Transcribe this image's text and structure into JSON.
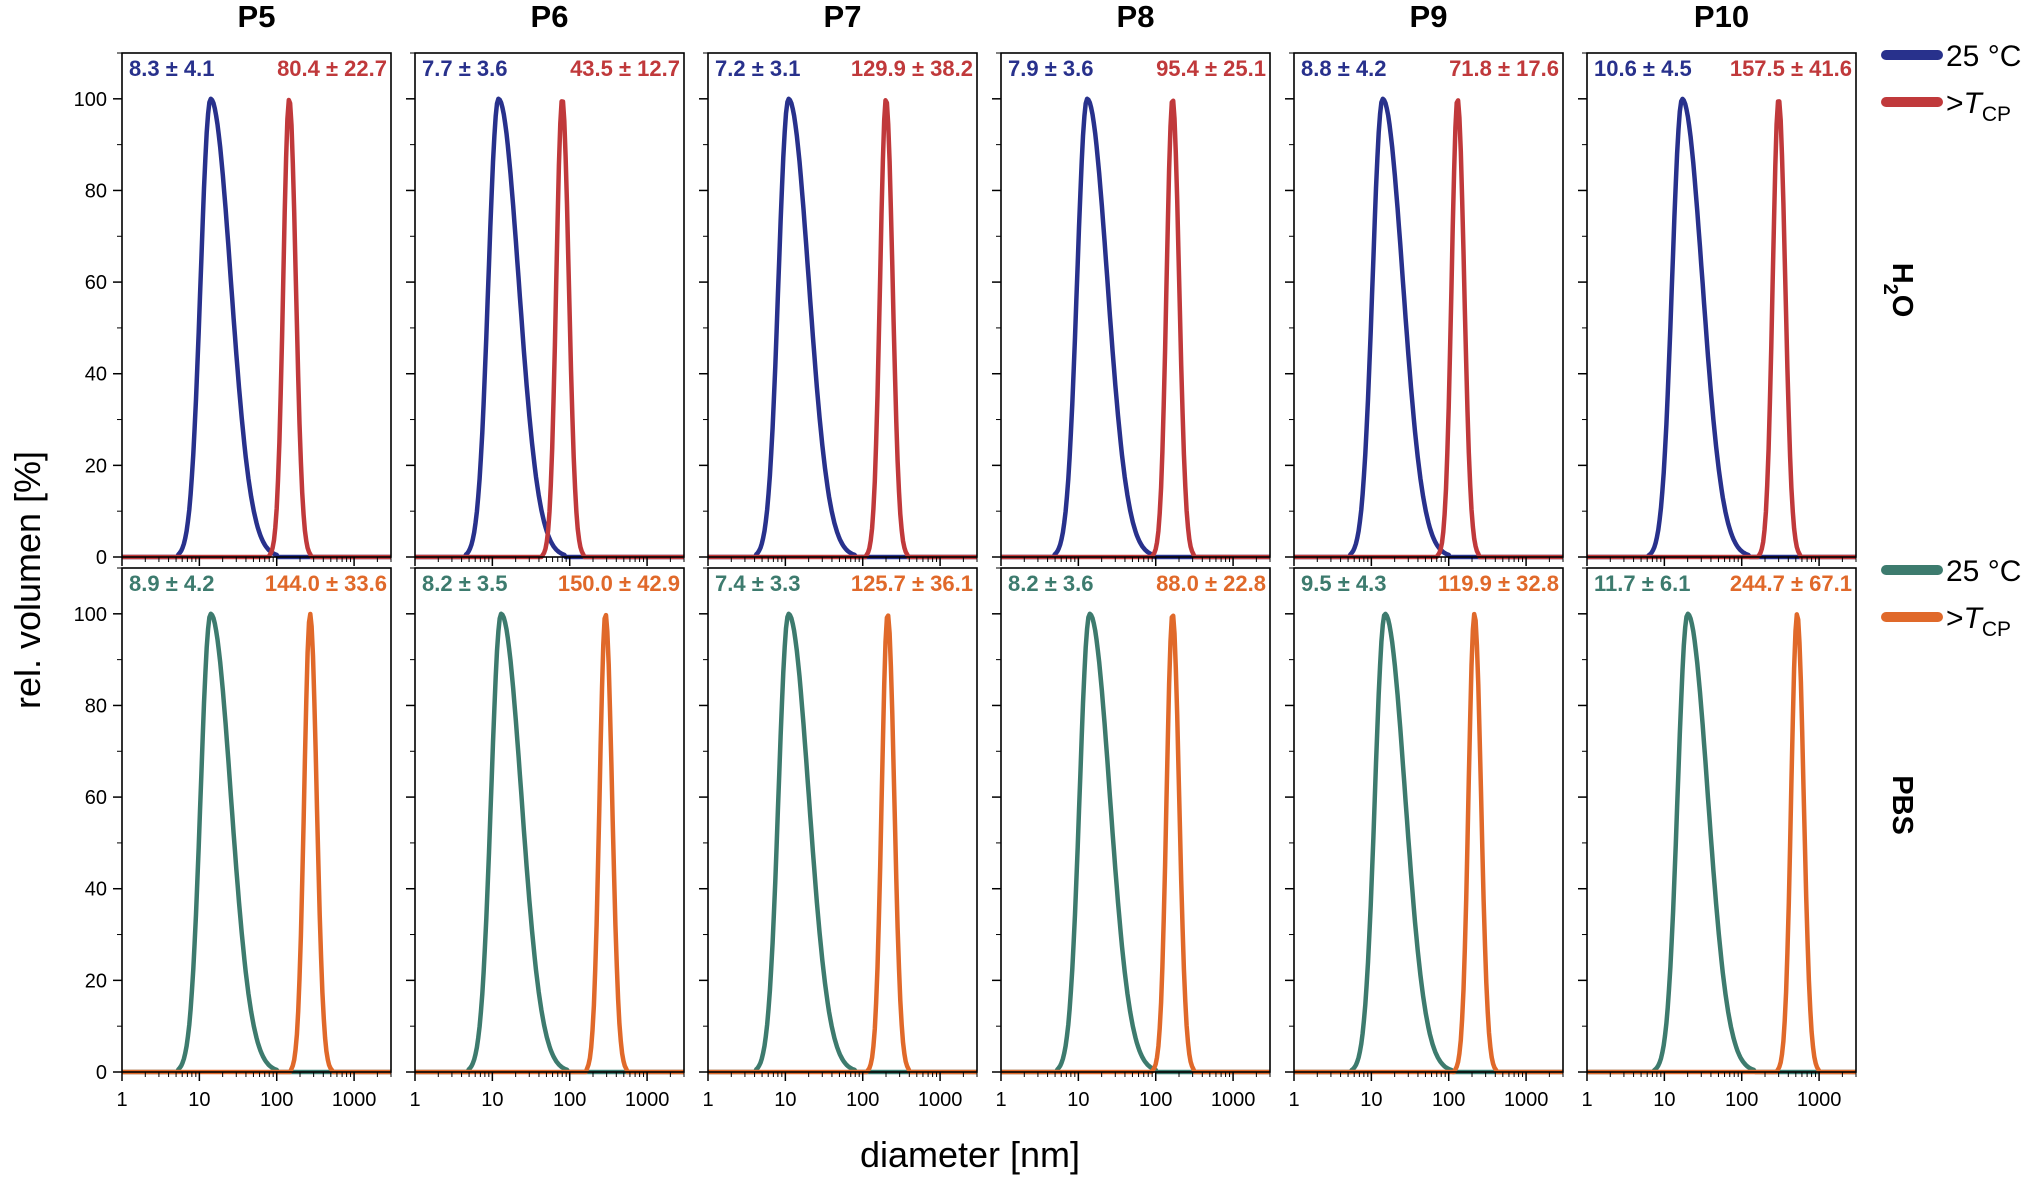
{
  "chart_data": {
    "type": "line",
    "xscale": "log",
    "xlim": [
      1,
      3000
    ],
    "ylim": [
      0,
      110
    ],
    "xticks": [
      "1",
      "10",
      "100",
      "1000"
    ],
    "yticks": [
      "0",
      "20",
      "40",
      "60",
      "80",
      "100"
    ],
    "xlabel": "diameter [nm]",
    "ylabel": "rel. volumen [%]",
    "columns": [
      "P5",
      "P6",
      "P7",
      "P8",
      "P9",
      "P10"
    ],
    "rows": [
      {
        "label_main": "H",
        "label_sub": "2",
        "label_tail": "O",
        "colors": [
          "#28318c",
          "#c0393b"
        ],
        "legend": [
          {
            "text": "25 °C",
            "color": "#28318c"
          },
          {
            "text_pre": ">",
            "text_italic": "T",
            "text_sub": "CP",
            "color": "#c0393b"
          }
        ],
        "panels": [
          {
            "ann1": "8.3 ± 4.1",
            "ann2": "80.4 ± 22.7",
            "peak1": 14,
            "peak2": 145
          },
          {
            "ann1": "7.7 ± 3.6",
            "ann2": "43.5 ± 12.7",
            "peak1": 12,
            "peak2": 80
          },
          {
            "ann1": "7.2 ± 3.1",
            "ann2": "129.9 ± 38.2",
            "peak1": 11,
            "peak2": 200
          },
          {
            "ann1": "7.9 ± 3.6",
            "ann2": "95.4 ± 25.1",
            "peak1": 13,
            "peak2": 165
          },
          {
            "ann1": "8.8 ± 4.2",
            "ann2": "71.8 ± 17.6",
            "peak1": 14,
            "peak2": 130
          },
          {
            "ann1": "10.6 ± 4.5",
            "ann2": "157.5 ± 41.6",
            "peak1": 17,
            "peak2": 300
          }
        ]
      },
      {
        "label_main": "PBS",
        "label_sub": "",
        "label_tail": "",
        "colors": [
          "#3d7b6e",
          "#e0692a"
        ],
        "legend": [
          {
            "text": "25 °C",
            "color": "#3d7b6e"
          },
          {
            "text_pre": ">",
            "text_italic": "T",
            "text_sub": "CP",
            "color": "#e0692a"
          }
        ],
        "panels": [
          {
            "ann1": "8.9 ± 4.2",
            "ann2": "144.0 ± 33.6",
            "peak1": 14,
            "peak2": 270
          },
          {
            "ann1": "8.2 ± 3.5",
            "ann2": "150.0 ± 42.9",
            "peak1": 13,
            "peak2": 290
          },
          {
            "ann1": "7.4 ± 3.3",
            "ann2": "125.7 ± 36.1",
            "peak1": 11,
            "peak2": 210
          },
          {
            "ann1": "8.2 ± 3.6",
            "ann2": "88.0 ± 22.8",
            "peak1": 14,
            "peak2": 165
          },
          {
            "ann1": "9.5 ± 4.3",
            "ann2": "119.9 ± 32.8",
            "peak1": 15,
            "peak2": 215
          },
          {
            "ann1": "11.7 ± 6.1",
            "ann2": "244.7 ± 67.1",
            "peak1": 20,
            "peak2": 520
          }
        ]
      }
    ]
  }
}
